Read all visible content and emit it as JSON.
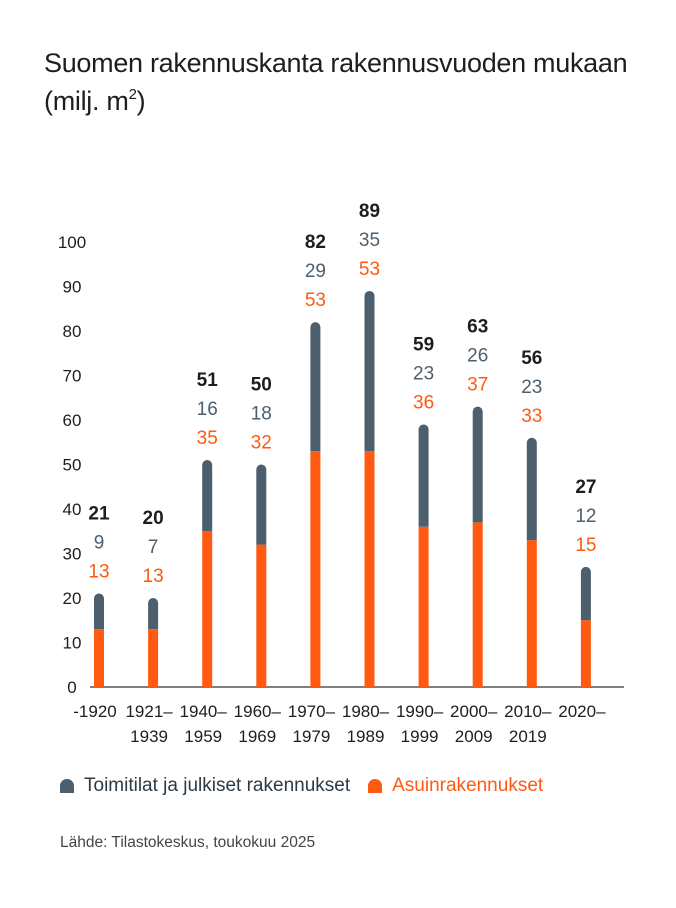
{
  "title_main": "Suomen rakennuskanta rakennusvuoden mukaan",
  "title_unit_prefix": "(milj. m",
  "title_unit_sup": "2",
  "title_unit_suffix": ")",
  "source": "Lähde: Tilastokeskus, toukokuu 2025",
  "colors": {
    "commercial": "#4c5f6e",
    "residential": "#ff5a0f",
    "axis": "#333333",
    "text": "#1e1e1e"
  },
  "legend": [
    {
      "label": "Toimitilat ja julkiset rakennukset",
      "color": "#4c5f6e"
    },
    {
      "label": "Asuinrakennukset",
      "color": "#ff5a0f"
    }
  ],
  "chart_data": {
    "type": "bar",
    "stacked": true,
    "title": "Suomen rakennuskanta rakennusvuoden mukaan (milj. m2)",
    "xlabel": "",
    "ylabel": "",
    "ylim": [
      0,
      100
    ],
    "yticks": [
      "0",
      "10",
      "20",
      "30",
      "40",
      "50",
      "60",
      "70",
      "80",
      "90",
      "100"
    ],
    "categories": [
      [
        "-1920",
        ""
      ],
      [
        "1921–",
        "1939"
      ],
      [
        "1940–",
        "1959"
      ],
      [
        "1960–",
        "1969"
      ],
      [
        "1970–",
        "1979"
      ],
      [
        "1980–",
        "1989"
      ],
      [
        "1990–",
        "1999"
      ],
      [
        "2000–",
        "2009"
      ],
      [
        "2010–",
        "2019"
      ],
      [
        "2020–",
        ""
      ]
    ],
    "totals": [
      21,
      20,
      51,
      50,
      82,
      89,
      59,
      63,
      56,
      27
    ],
    "series": [
      {
        "name": "Asuinrakennukset",
        "values": [
          13,
          13,
          35,
          32,
          53,
          53,
          36,
          37,
          33,
          15
        ]
      },
      {
        "name": "Toimitilat ja julkiset rakennukset",
        "values": [
          9,
          7,
          16,
          18,
          29,
          35,
          23,
          26,
          23,
          12
        ]
      }
    ],
    "legend_position": "bottom",
    "grid": false
  }
}
